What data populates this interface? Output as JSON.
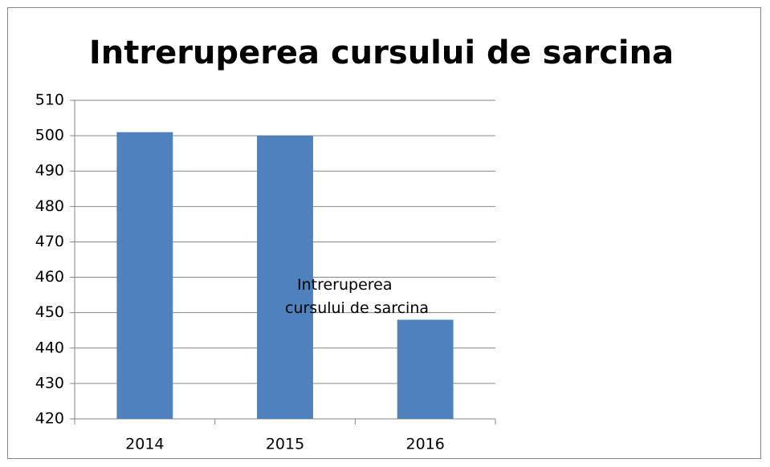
{
  "chart_data": {
    "type": "bar",
    "title": "Intreruperea cursului de sarcina",
    "categories": [
      "2014",
      "2015",
      "2016"
    ],
    "series": [
      {
        "name": "Intreruperea cursului de sarcina",
        "color": "#4f81bd",
        "values": [
          501,
          500,
          448
        ]
      }
    ],
    "ylim": [
      420,
      510
    ],
    "yticks": [
      420,
      430,
      440,
      450,
      460,
      470,
      480,
      490,
      500,
      510
    ],
    "grid": true,
    "legend": "right"
  }
}
